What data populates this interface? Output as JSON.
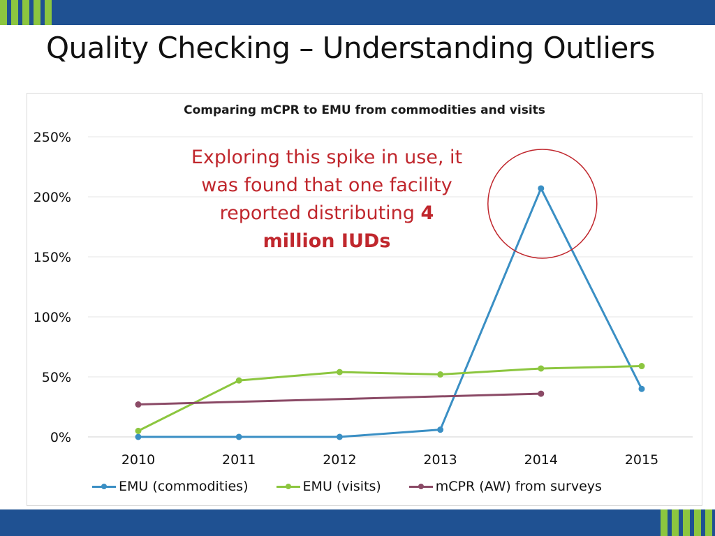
{
  "slide": {
    "title": "Quality Checking – Understanding Outliers",
    "band_color": "#1f5192",
    "stripe_color": "#8cc63f"
  },
  "annotation": {
    "line1": "Exploring this spike in use, it",
    "line2": "was found that one facility",
    "line3_prefix": "reported distributing ",
    "line3_bold": "4",
    "line4_bold": "million IUDs",
    "color": "#c0272d"
  },
  "chart_data": {
    "type": "line",
    "title": "Comparing mCPR to EMU from commodities and visits",
    "categories": [
      "2010",
      "2011",
      "2012",
      "2013",
      "2014",
      "2015"
    ],
    "ylim": [
      0,
      250
    ],
    "yticks": [
      "0%",
      "50%",
      "100%",
      "150%",
      "200%",
      "250%"
    ],
    "ytick_values": [
      0,
      50,
      100,
      150,
      200,
      250
    ],
    "grid": true,
    "legend_position": "bottom",
    "series": [
      {
        "name": "EMU (commodities)",
        "color": "#3a8fc4",
        "values": [
          0,
          0,
          0,
          6,
          207,
          40
        ]
      },
      {
        "name": "EMU (visits)",
        "color": "#8cc63f",
        "values": [
          5,
          47,
          54,
          52,
          57,
          59
        ]
      },
      {
        "name": "mCPR (AW) from surveys",
        "color": "#8b4a66",
        "values": [
          27,
          null,
          null,
          null,
          36,
          null
        ]
      }
    ],
    "highlight": {
      "category": "2014",
      "series": "EMU (commodities)",
      "color": "#c0272d"
    }
  }
}
